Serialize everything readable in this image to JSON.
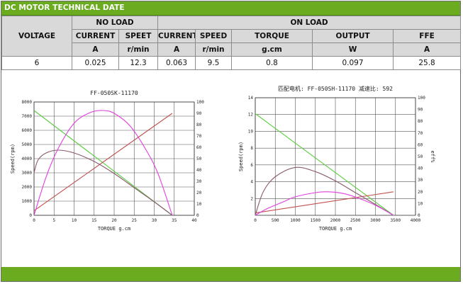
{
  "title": "DC MOTOR TECHNICAL DATE",
  "table": {
    "voltage_header": "VOLTAGE",
    "no_load_header": "NO LOAD",
    "on_load_header": "ON LOAD",
    "col_headers": [
      "CURRENT",
      "SPEET",
      "CURRENT",
      "SPEED",
      "TORQUE",
      "OUTPUT",
      "FFE"
    ],
    "units": [
      "A",
      "r/min",
      "A",
      "r/min",
      "g.cm",
      "W",
      "A"
    ],
    "row": [
      "6",
      "0.025",
      "12.3",
      "0.063",
      "9.5",
      "0.8",
      "0.097",
      "25.8"
    ]
  },
  "colors": {
    "header_green": "#6aab1f",
    "header_gray": "#d9d9d9",
    "speed_line": "#5ccc3f",
    "eff_curve": "#8a5a6e",
    "output_curve": "#e040e0",
    "current_line": "#c0504d"
  },
  "chart_data": [
    {
      "type": "line",
      "title": "FF-050SK-11170",
      "xlabel": "TORQUE g.cm",
      "ylabel": "Speed(rpm)",
      "y2label": "eff%",
      "xlim": [
        0,
        40
      ],
      "ylim": [
        0,
        8000
      ],
      "y2lim": [
        0,
        100
      ],
      "x_ticks": [
        "0",
        "5",
        "10",
        "15",
        "20",
        "25",
        "30",
        "35",
        "40"
      ],
      "y_ticks": [
        "0",
        "1000",
        "2000",
        "3000",
        "4000",
        "5000",
        "6000",
        "7000",
        "8000"
      ],
      "y2_ticks": [
        "0",
        "10",
        "20",
        "30",
        "40",
        "50",
        "60",
        "70",
        "80",
        "90",
        "100"
      ],
      "series": [
        {
          "color": "#5ccc3f",
          "axis": "y",
          "x": [
            0,
            34.5
          ],
          "y": [
            7400,
            0
          ]
        },
        {
          "color": "#c0504d",
          "axis": "y2",
          "x": [
            0,
            34.5
          ],
          "y": [
            4,
            90
          ]
        },
        {
          "color": "#8a5a6e",
          "axis": "y",
          "x": [
            0,
            1,
            3,
            6,
            10,
            15,
            20,
            25,
            30,
            34.5
          ],
          "y": [
            3000,
            3900,
            4400,
            4600,
            4400,
            3800,
            2950,
            1950,
            950,
            0
          ]
        },
        {
          "color": "#e040e0",
          "axis": "y",
          "x": [
            0,
            3,
            6,
            10,
            14,
            17.2,
            20,
            24,
            28,
            31,
            34.5
          ],
          "y": [
            0,
            2700,
            4700,
            6500,
            7250,
            7400,
            7200,
            6300,
            4600,
            2900,
            0
          ]
        }
      ]
    },
    {
      "type": "line",
      "title": "匹配电机:  FF-050SH-11170 减速比: 592",
      "xlabel": "TORQUE g.cm",
      "ylabel": "Speed(rpm)",
      "y2label": "eff%",
      "xlim": [
        0,
        4000
      ],
      "ylim": [
        0,
        14
      ],
      "y2lim": [
        0,
        100
      ],
      "x_ticks": [
        "0",
        "500",
        "1000",
        "1500",
        "2000",
        "2500",
        "3000",
        "3500",
        "4000"
      ],
      "y_ticks": [
        "2",
        "4",
        "6",
        "8",
        "10",
        "12",
        "14"
      ],
      "y2_ticks": [
        "0",
        "10",
        "20",
        "30",
        "40",
        "50",
        "60",
        "70",
        "80",
        "90",
        "100"
      ],
      "series": [
        {
          "color": "#5ccc3f",
          "axis": "y",
          "x": [
            0,
            3450
          ],
          "y": [
            12.1,
            0
          ]
        },
        {
          "color": "#c0504d",
          "axis": "y2",
          "x": [
            0,
            3450
          ],
          "y": [
            2,
            20
          ]
        },
        {
          "color": "#8a5a6e",
          "axis": "y",
          "x": [
            0,
            200,
            500,
            1000,
            1500,
            2000,
            2500,
            3000,
            3450
          ],
          "y": [
            0,
            2.8,
            4.6,
            5.7,
            5.2,
            4.1,
            2.7,
            1.3,
            0
          ]
        },
        {
          "color": "#e040e0",
          "axis": "y",
          "x": [
            0,
            300,
            700,
            1000,
            1500,
            1800,
            2200,
            2600,
            3000,
            3450
          ],
          "y": [
            0,
            0.8,
            1.6,
            2.2,
            2.7,
            2.8,
            2.6,
            2.0,
            1.2,
            0
          ]
        }
      ]
    }
  ]
}
